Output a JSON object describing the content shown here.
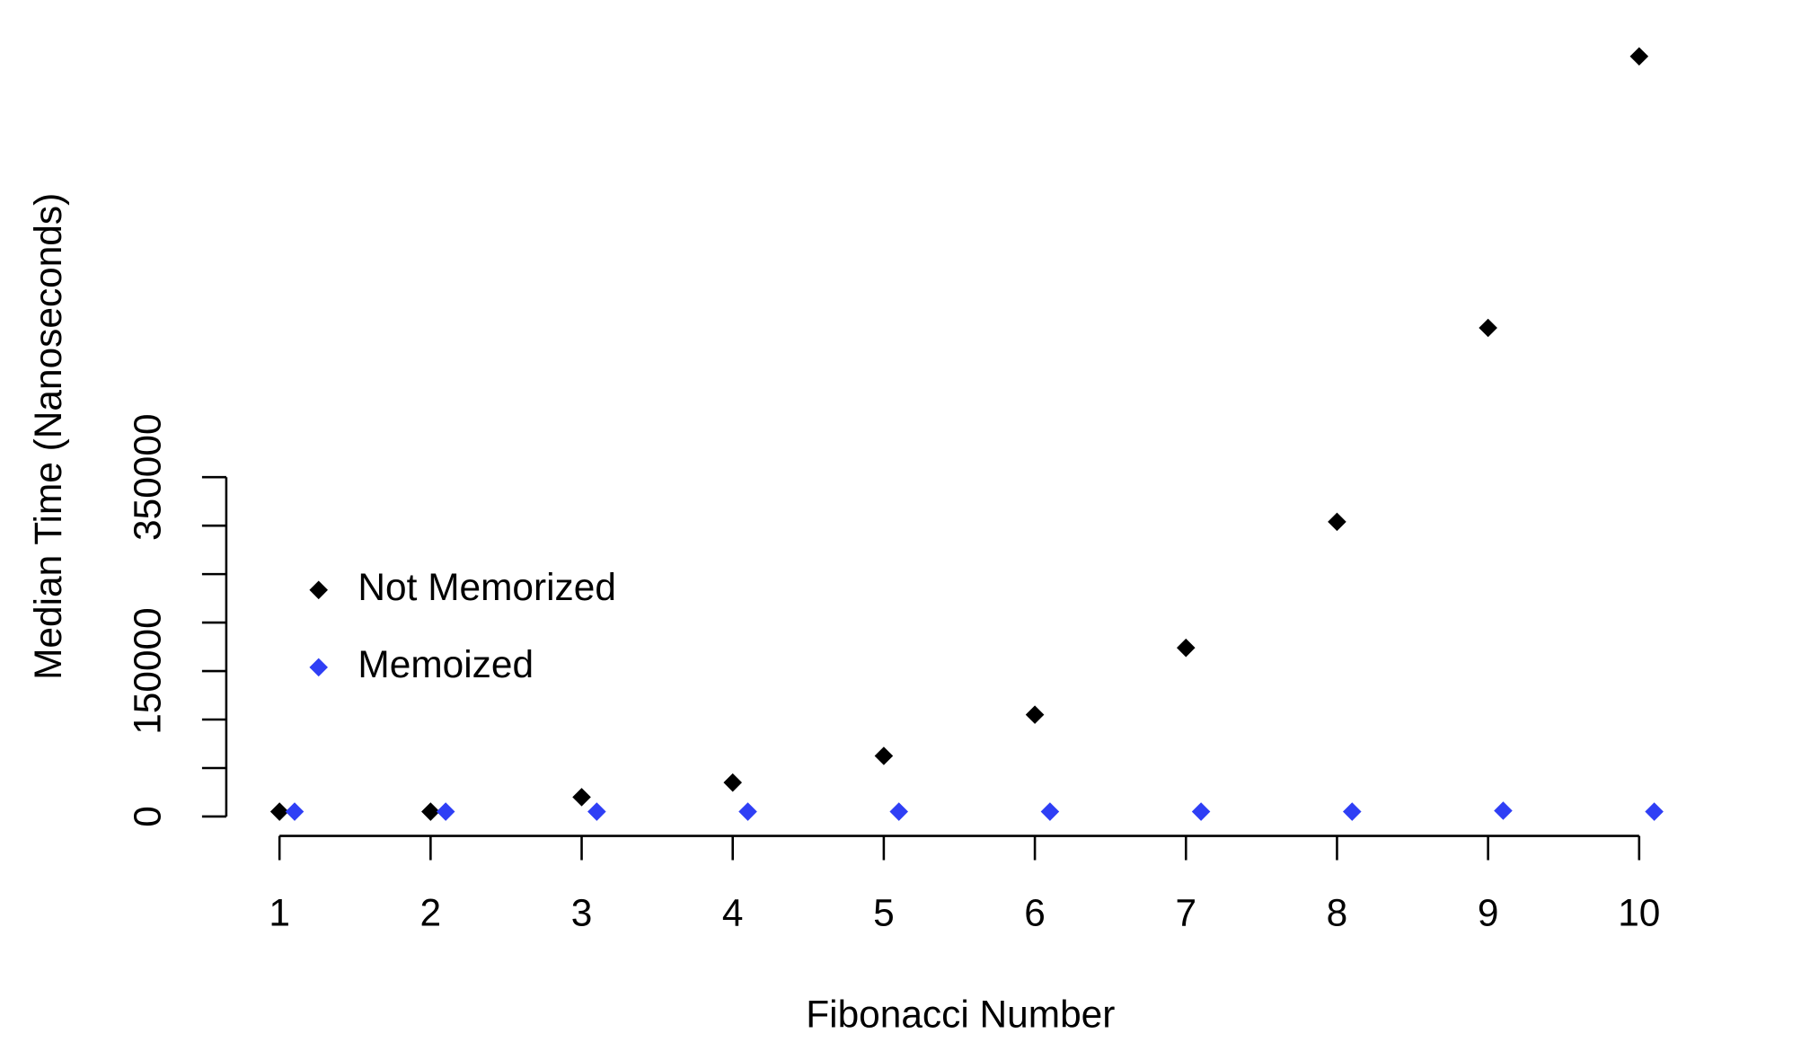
{
  "chart_data": {
    "type": "scatter",
    "x_label": "Fibonacci Number",
    "y_label": "Median Time (Nanoseconds)",
    "xlim": [
      0.64,
      10.46
    ],
    "ylim": [
      -20000,
      810000
    ],
    "xticks": [
      1,
      2,
      3,
      4,
      5,
      6,
      7,
      8,
      9,
      10
    ],
    "yticks": [
      0,
      150000,
      350000
    ],
    "yminor_ticks": [
      50000,
      100000,
      200000,
      250000,
      300000
    ],
    "legend": "left",
    "series": [
      {
        "name": "Not Memorized",
        "color": "#000000",
        "x": [
          1,
          2,
          3,
          4,
          5,
          6,
          7,
          8,
          9,
          10
        ],
        "values": [
          5000,
          5000,
          20000,
          35000,
          62500,
          105000,
          174000,
          304000,
          504000,
          784000
        ]
      },
      {
        "name": "Memoized",
        "color": "#2f3ff5",
        "x": [
          1.1,
          2.1,
          3.1,
          4.1,
          5.1,
          6.1,
          7.1,
          8.1,
          9.1,
          10.1
        ],
        "values": [
          5000,
          5000,
          5000,
          5000,
          5000,
          5000,
          5000,
          5000,
          6000,
          5000
        ]
      }
    ]
  }
}
